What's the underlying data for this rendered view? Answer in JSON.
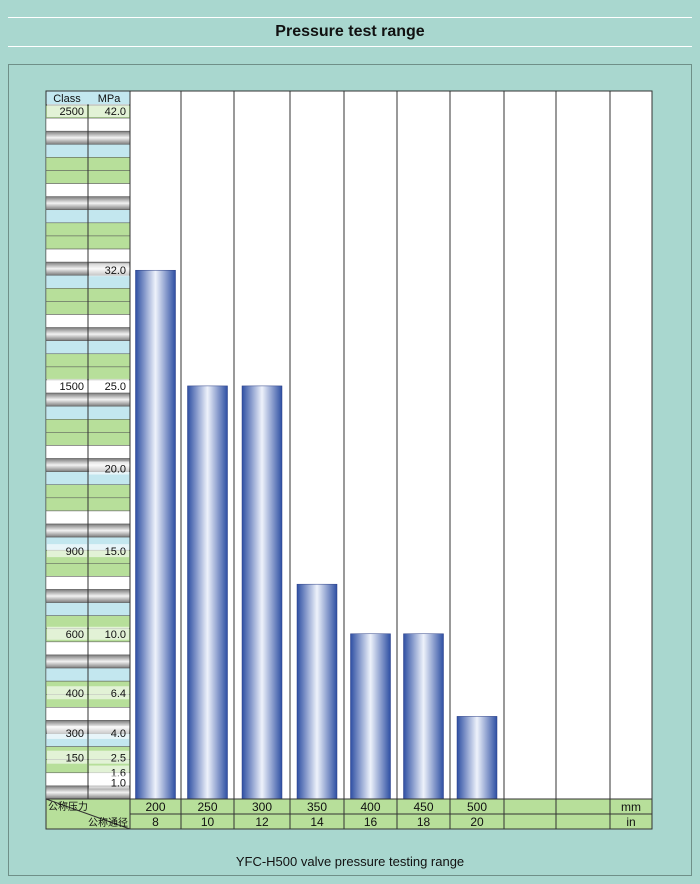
{
  "title": "Pressure test range",
  "caption": "YFC-H500 valve pressure testing range",
  "colors": {
    "background": "#a9d7cf",
    "bar_edge": "#2e4fa3",
    "bar_mid": "#eef2fb",
    "row_green": "#b7df9a",
    "row_blue": "#c3e7ef",
    "row_gray": "#a3a3a3"
  },
  "chart_data": {
    "type": "bar",
    "categories": [
      "200",
      "250",
      "300",
      "350",
      "400",
      "450",
      "500",
      "",
      "",
      ""
    ],
    "secondary_categories": [
      "8",
      "10",
      "12",
      "14",
      "16",
      "18",
      "20",
      "",
      "",
      ""
    ],
    "values": [
      32,
      25,
      25,
      13,
      10,
      10,
      5,
      null,
      null,
      null
    ],
    "ylim": [
      0,
      42
    ],
    "ylabel_class": "Class",
    "ylabel_mpa": "MPa",
    "y_axis_labels": [
      {
        "class": "2500",
        "mpa": "42.0"
      },
      {
        "class": "",
        "mpa": "32.0"
      },
      {
        "class": "1500",
        "mpa": "25.0"
      },
      {
        "class": "",
        "mpa": "20.0"
      },
      {
        "class": "900",
        "mpa": "15.0"
      },
      {
        "class": "600",
        "mpa": "10.0"
      },
      {
        "class": "400",
        "mpa": "6.4"
      },
      {
        "class": "300",
        "mpa": "4.0"
      },
      {
        "class": "150",
        "mpa": "2.5"
      },
      {
        "class": "",
        "mpa": "1.6"
      },
      {
        "class": "",
        "mpa": "1.0"
      }
    ],
    "x_row_label_top": "公称压力",
    "x_row_label_bottom": "公称通径",
    "x_unit_top": "mm",
    "x_unit_bottom": "in",
    "grid": true
  }
}
